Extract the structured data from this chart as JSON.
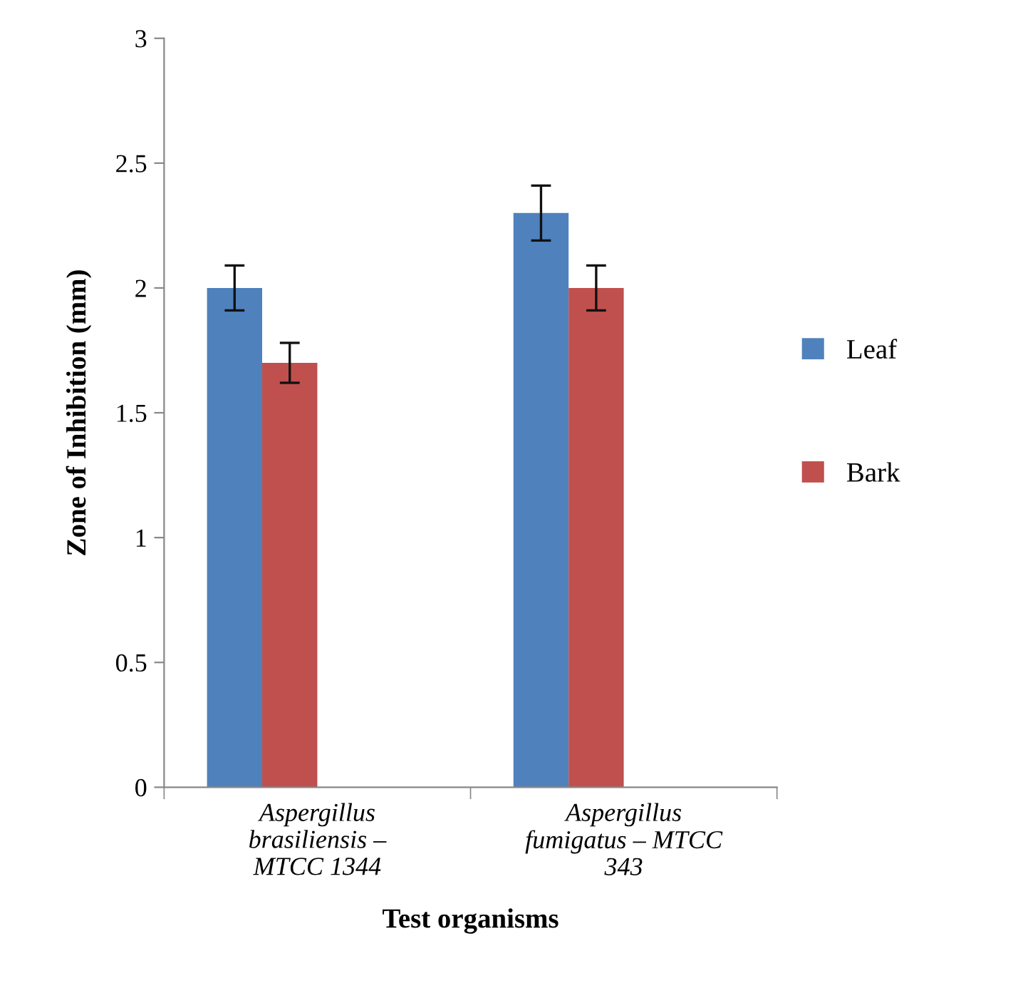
{
  "chart_data": {
    "type": "bar",
    "xlabel": "Test organisms",
    "ylabel": "Zone of Inhibition (mm)",
    "categories": [
      "Aspergillus\nbrasiliensis –\nMTCC 1344",
      "Aspergillus\nfumigatus – MTCC\n343"
    ],
    "series": [
      {
        "name": "Leaf",
        "color": "#4f81bd",
        "values": [
          2.0,
          2.3
        ],
        "errors": [
          0.09,
          0.11
        ]
      },
      {
        "name": "Bark",
        "color": "#c0504d",
        "values": [
          1.7,
          2.0
        ],
        "errors": [
          0.08,
          0.09
        ]
      }
    ],
    "ylim": [
      0,
      3
    ],
    "yticks": [
      0,
      0.5,
      1,
      1.5,
      2,
      2.5,
      3
    ],
    "grid": false,
    "legend": "right"
  }
}
